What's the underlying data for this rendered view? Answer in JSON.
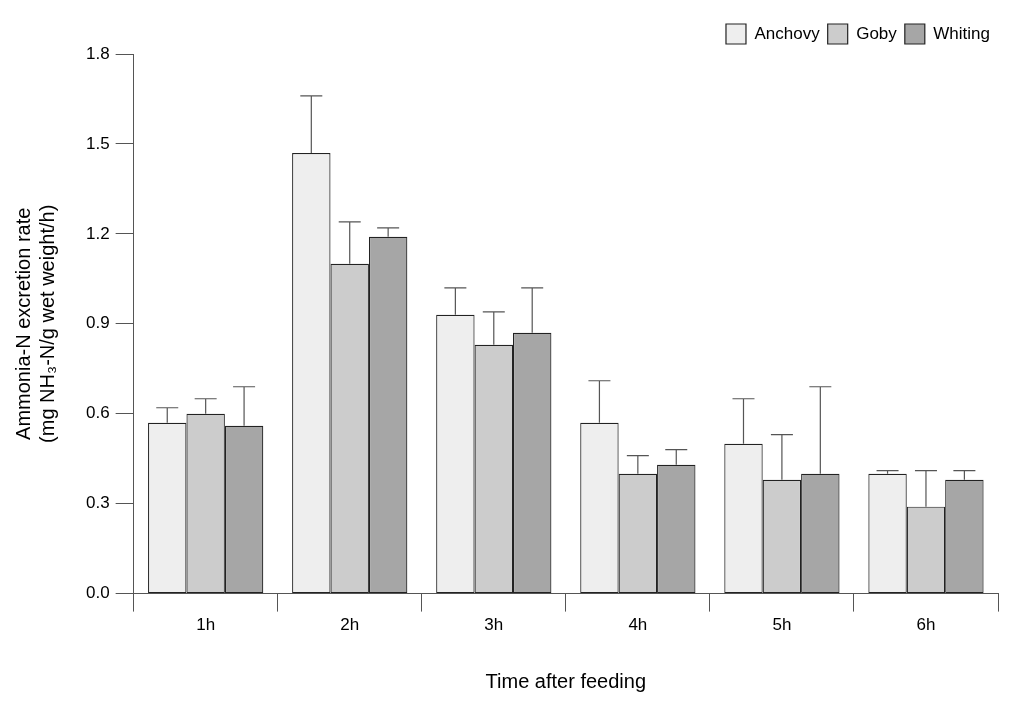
{
  "chart_data": {
    "type": "bar",
    "xlabel": "Time after feeding",
    "ylabel": "Ammonia-N excretion rate\n(mg NH₃-N/g wet weight/h)",
    "categories": [
      "1h",
      "2h",
      "3h",
      "4h",
      "5h",
      "6h"
    ],
    "series": [
      {
        "name": "Anchovy",
        "color": "#eeeeee",
        "values": [
          0.57,
          1.47,
          0.93,
          0.57,
          0.5,
          0.4
        ],
        "errors": [
          [
            0.57,
            0.62
          ],
          [
            1.47,
            1.66
          ],
          [
            0.93,
            1.02
          ],
          [
            0.57,
            0.71
          ],
          [
            0.5,
            0.65
          ],
          [
            0.4,
            0.41
          ]
        ]
      },
      {
        "name": "Goby",
        "color": "#cccccc",
        "values": [
          0.6,
          1.1,
          0.83,
          0.4,
          0.38,
          0.29
        ],
        "errors": [
          [
            0.6,
            0.65
          ],
          [
            1.1,
            1.24
          ],
          [
            0.83,
            0.94
          ],
          [
            0.4,
            0.46
          ],
          [
            0.38,
            0.53
          ],
          [
            0.29,
            0.41
          ]
        ]
      },
      {
        "name": "Whiting",
        "color": "#a6a6a6",
        "values": [
          0.56,
          1.19,
          0.87,
          0.43,
          0.4,
          0.38
        ],
        "errors": [
          [
            0.56,
            0.69
          ],
          [
            1.19,
            1.22
          ],
          [
            0.87,
            1.02
          ],
          [
            0.43,
            0.48
          ],
          [
            0.4,
            0.69
          ],
          [
            0.38,
            0.41
          ]
        ]
      }
    ],
    "ylim": [
      0,
      1.8
    ],
    "yticks": [
      {
        "value": 0,
        "label": "0.0"
      },
      {
        "value": 0.3,
        "label": "0.3"
      },
      {
        "value": 0.6,
        "label": "0.6"
      },
      {
        "value": 0.9,
        "label": "0.9"
      },
      {
        "value": 1.2,
        "label": "1.2"
      },
      {
        "value": 1.5,
        "label": "1.5"
      },
      {
        "value": 1.8,
        "label": "1.8"
      }
    ],
    "grid": false,
    "legend": "top right"
  }
}
